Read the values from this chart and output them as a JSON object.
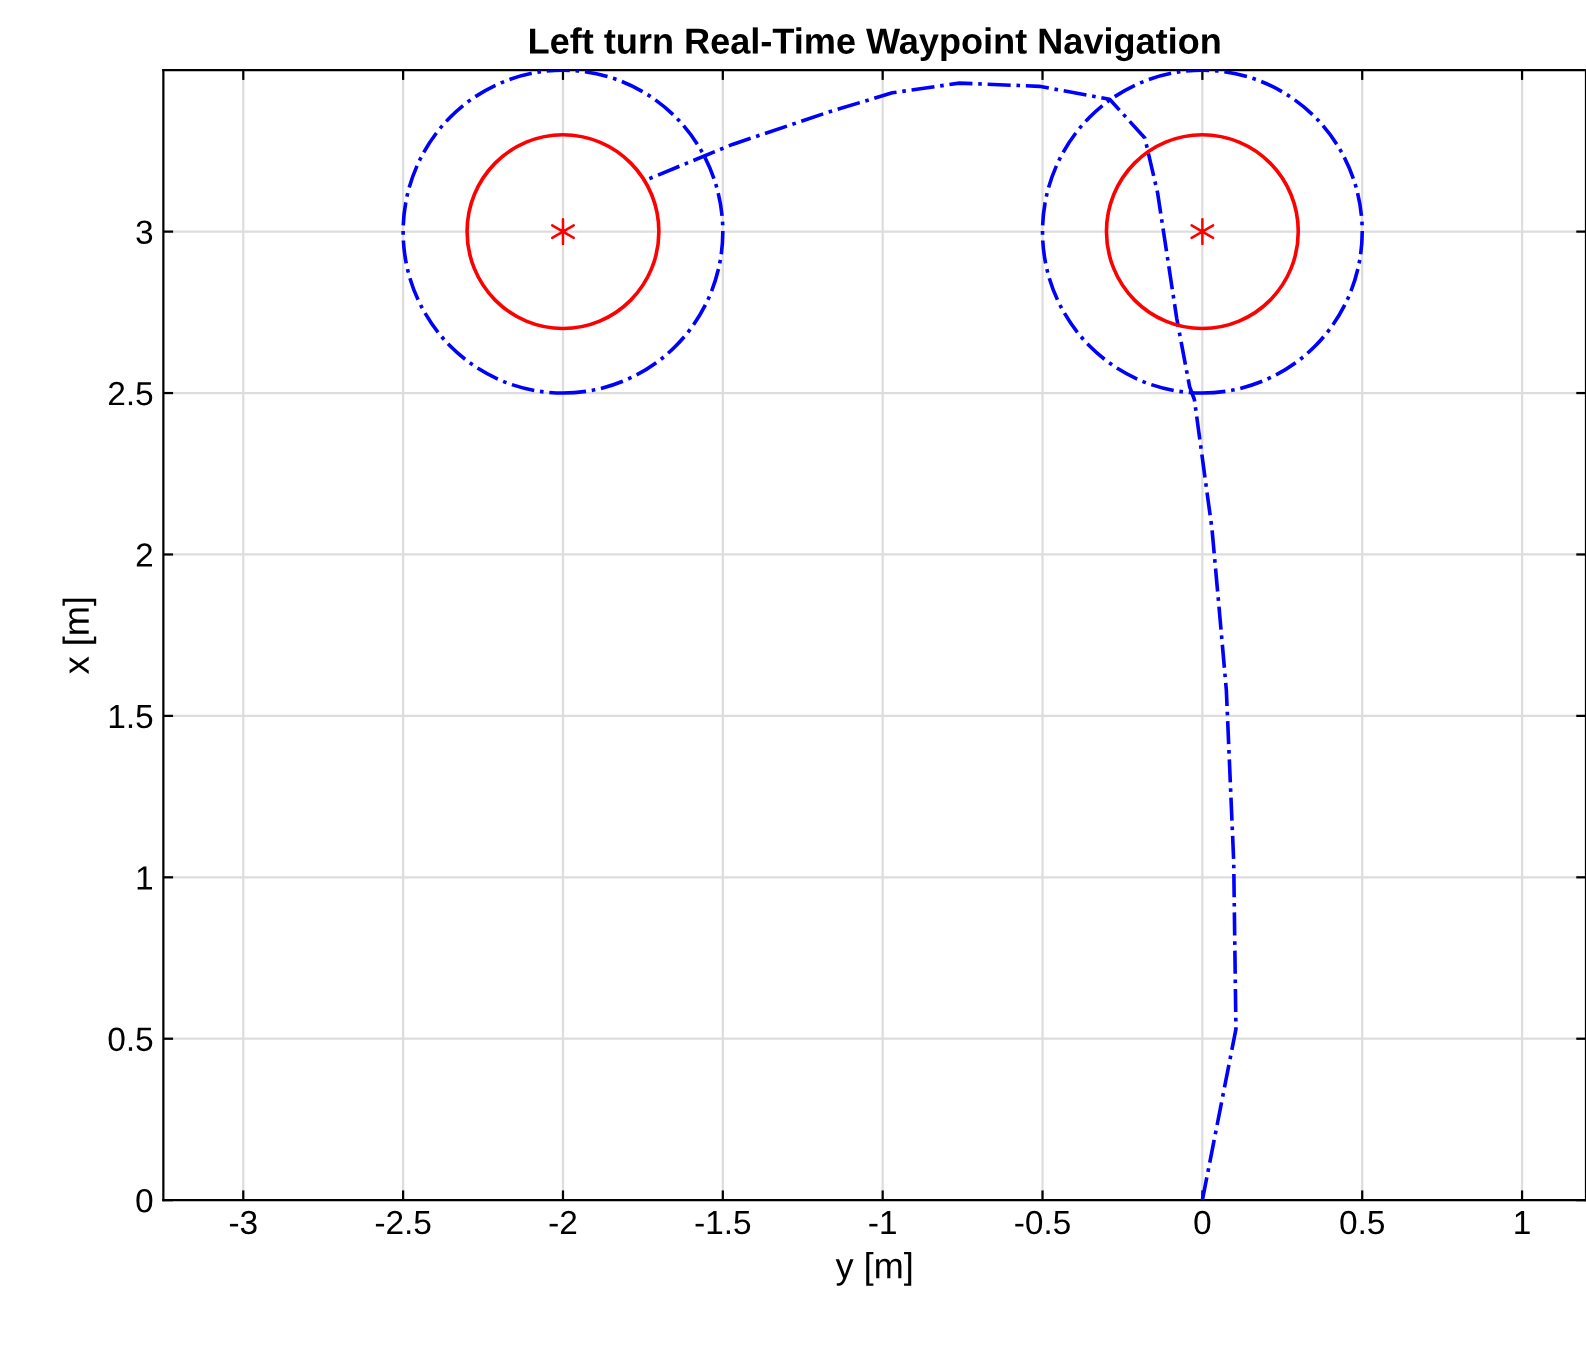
{
  "chart_data": {
    "type": "line",
    "title": "Left turn Real-Time Waypoint Navigation",
    "xlabel": "y [m]",
    "ylabel": "x [m]",
    "xlim": [
      -3.25,
      1.2
    ],
    "ylim": [
      0,
      3.5
    ],
    "xticks": [
      -3,
      -2.5,
      -2,
      -1.5,
      -1,
      -0.5,
      0,
      0.5,
      1
    ],
    "yticks": [
      0,
      0.5,
      1,
      1.5,
      2,
      2.5,
      3
    ],
    "grid": true,
    "legend": false,
    "series": [
      {
        "color": "#0000ff",
        "line_style": "dashed",
        "x": [
          0,
          0.105,
          0.098,
          0.075,
          0.05,
          0.03,
          -0.025,
          -0.04,
          -0.08,
          -0.14,
          -0.18,
          -0.29,
          -0.51,
          -0.76,
          -0.97,
          -1.17,
          -1.47,
          -1.74
        ],
        "values": [
          0,
          0.53,
          1.05,
          1.58,
          1.86,
          2.08,
          2.48,
          2.52,
          2.73,
          3.12,
          3.29,
          3.41,
          3.45,
          3.46,
          3.43,
          3.37,
          3.27,
          3.16
        ]
      },
      {
        "type": "scatter",
        "color": "#ff0000",
        "marker": "cross",
        "x": [
          -2,
          0
        ],
        "values": [
          3,
          3
        ]
      }
    ]
  }
}
